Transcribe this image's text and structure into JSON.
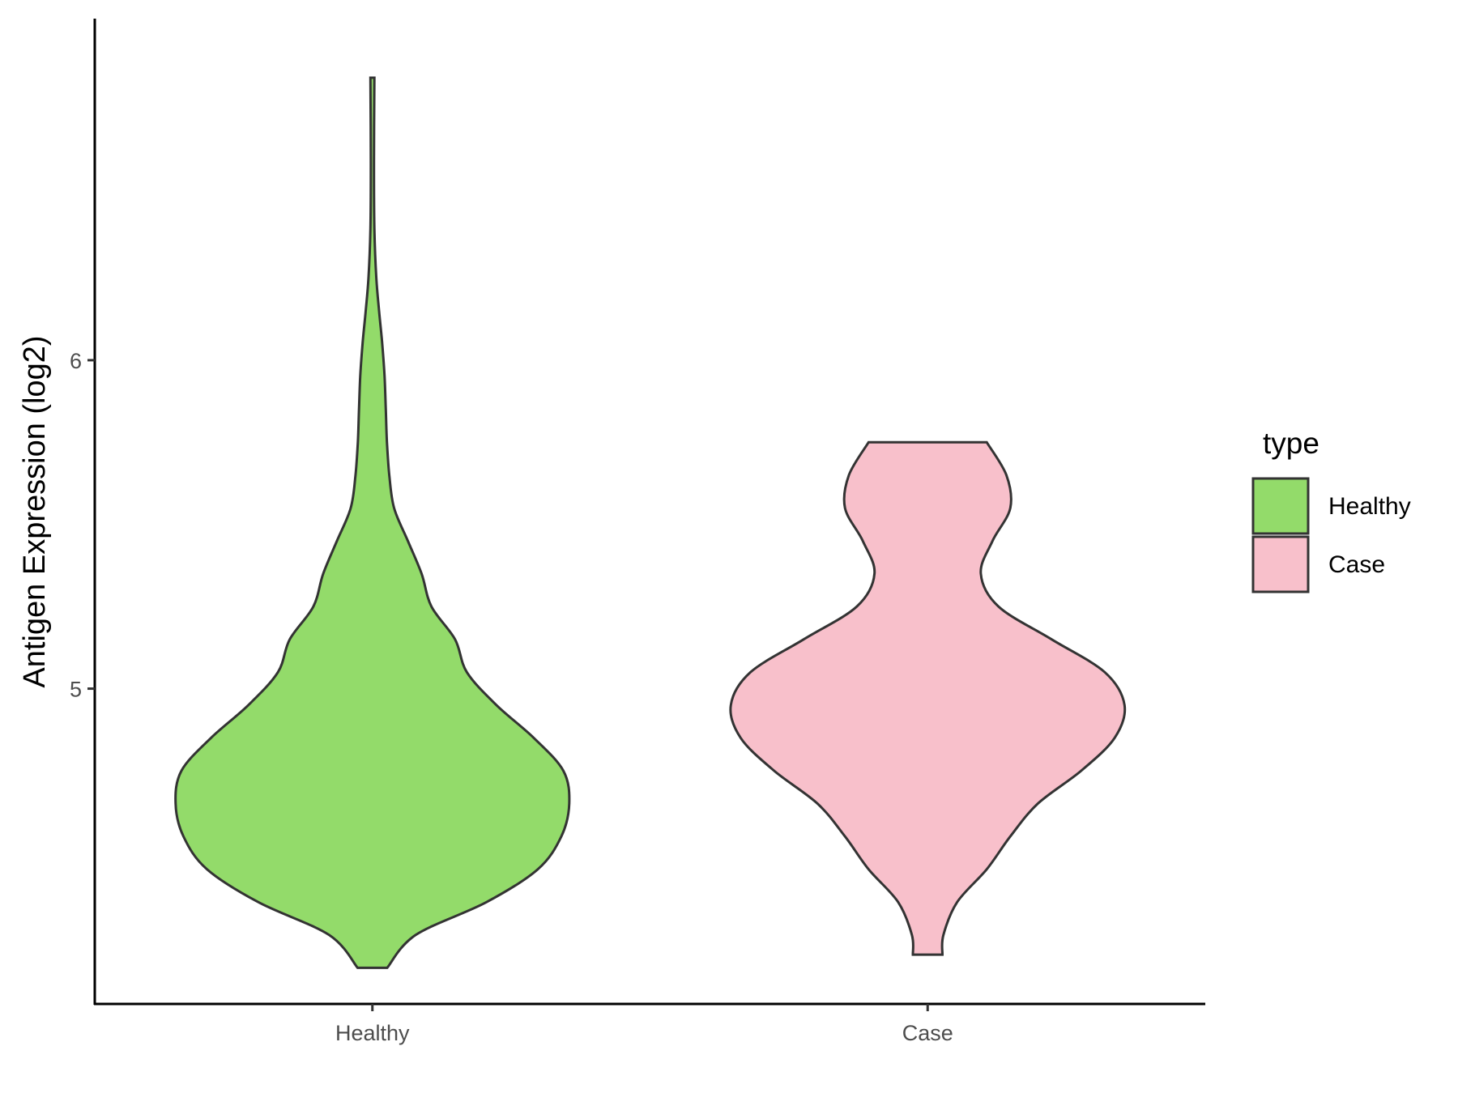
{
  "chart_data": {
    "type": "violin",
    "ylabel": "Antigen Expression (log2)",
    "categories": [
      "Healthy",
      "Case"
    ],
    "y_ticks": [
      5,
      6
    ],
    "ylim": [
      4.04,
      7.04
    ],
    "grid": false,
    "legend": {
      "title": "type",
      "placement": "right",
      "entries": [
        {
          "label": "Healthy",
          "color": "#93DB6A"
        },
        {
          "label": "Case",
          "color": "#F8C0CB"
        }
      ]
    },
    "series": [
      {
        "category": "Healthy",
        "color": "#93DB6A",
        "min": 4.15,
        "max": 6.86,
        "density_profile": [
          [
            4.15,
            0.075
          ],
          [
            4.25,
            0.22
          ],
          [
            4.35,
            0.58
          ],
          [
            4.45,
            0.84
          ],
          [
            4.55,
            0.96
          ],
          [
            4.65,
            1.0
          ],
          [
            4.75,
            0.97
          ],
          [
            4.85,
            0.82
          ],
          [
            4.95,
            0.63
          ],
          [
            5.05,
            0.48
          ],
          [
            5.15,
            0.42
          ],
          [
            5.25,
            0.3
          ],
          [
            5.35,
            0.25
          ],
          [
            5.45,
            0.18
          ],
          [
            5.55,
            0.11
          ],
          [
            5.65,
            0.086
          ],
          [
            5.75,
            0.074
          ],
          [
            5.85,
            0.068
          ],
          [
            5.95,
            0.062
          ],
          [
            6.05,
            0.05
          ],
          [
            6.15,
            0.034
          ],
          [
            6.25,
            0.02
          ],
          [
            6.4,
            0.01
          ],
          [
            6.6,
            0.008
          ],
          [
            6.86,
            0.01
          ]
        ]
      },
      {
        "category": "Case",
        "color": "#F8C0CB",
        "min": 4.19,
        "max": 5.75,
        "density_profile": [
          [
            4.19,
            0.075
          ],
          [
            4.25,
            0.08
          ],
          [
            4.35,
            0.15
          ],
          [
            4.45,
            0.3
          ],
          [
            4.55,
            0.42
          ],
          [
            4.65,
            0.56
          ],
          [
            4.75,
            0.78
          ],
          [
            4.85,
            0.95
          ],
          [
            4.95,
            1.0
          ],
          [
            5.05,
            0.9
          ],
          [
            5.15,
            0.63
          ],
          [
            5.25,
            0.36
          ],
          [
            5.35,
            0.27
          ],
          [
            5.45,
            0.33
          ],
          [
            5.55,
            0.42
          ],
          [
            5.65,
            0.4
          ],
          [
            5.75,
            0.3
          ]
        ]
      }
    ]
  }
}
